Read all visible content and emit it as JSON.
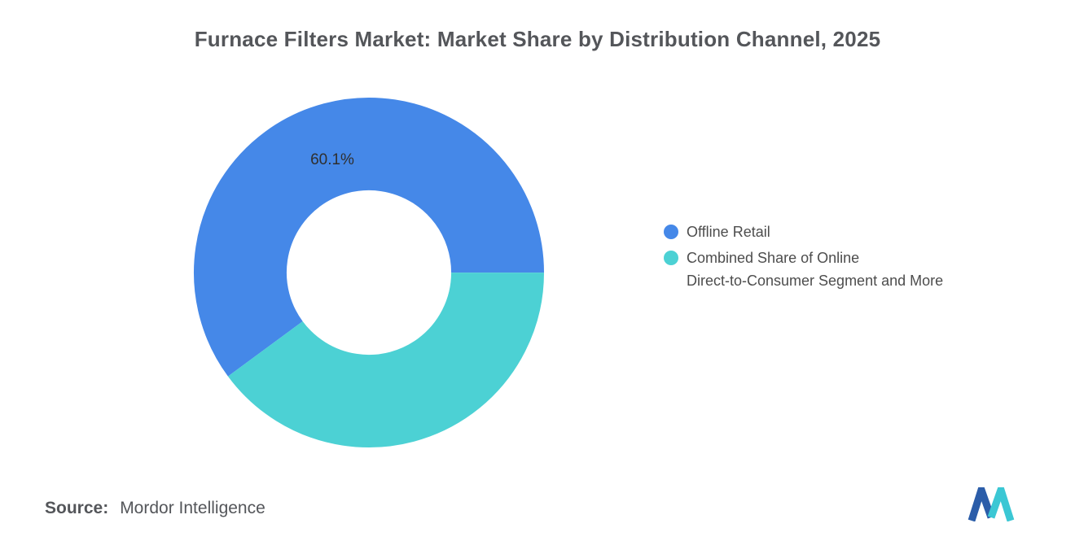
{
  "title": "Furnace Filters Market: Market Share by Distribution Channel, 2025",
  "chart_data": {
    "type": "pie",
    "subtype": "donut",
    "title": "Furnace Filters Market: Market Share by Distribution Channel, 2025",
    "units": "percent",
    "start_angle_deg": 233.6,
    "direction": "clockwise",
    "inner_radius_ratio": 0.47,
    "legend_position": "right",
    "slices": [
      {
        "label": "Offline Retail",
        "value": 60.1,
        "color": "#4588E8",
        "data_label": "60.1%"
      },
      {
        "label": "Combined Share of Online Direct-to-Consumer Segment and More",
        "value": 39.9,
        "color": "#4CD1D4",
        "data_label": null
      }
    ]
  },
  "legend": {
    "items": [
      {
        "lines": [
          "Offline Retail"
        ],
        "color": "#4588E8"
      },
      {
        "lines": [
          "Combined Share of Online",
          "Direct-to-Consumer Segment and More"
        ],
        "color": "#4CD1D4"
      }
    ]
  },
  "source": {
    "label": "Source:",
    "value": "Mordor Intelligence"
  },
  "logo": {
    "name": "mordor-intelligence-logo",
    "blue": "#2B5DA9",
    "teal": "#3BC7D4"
  }
}
